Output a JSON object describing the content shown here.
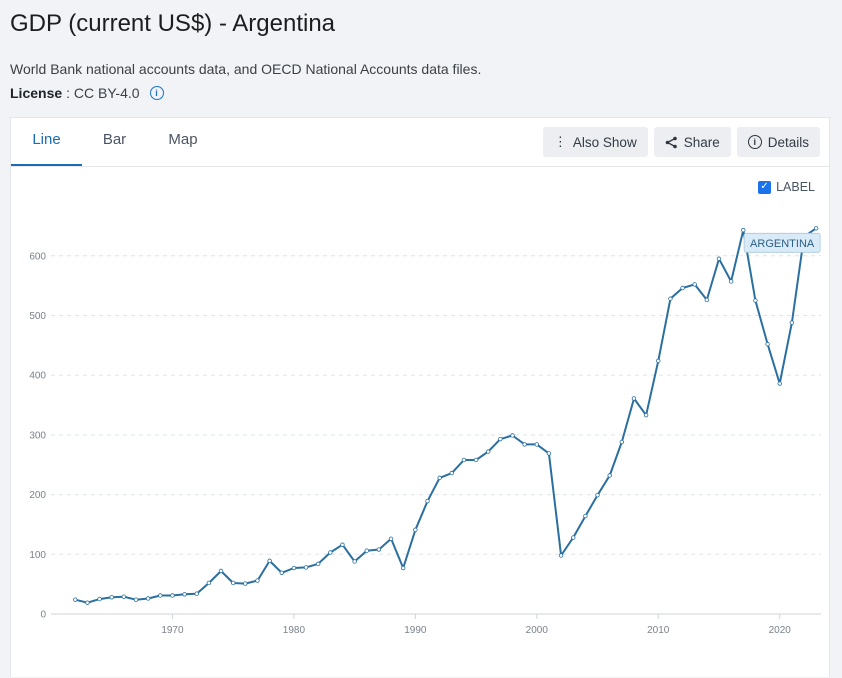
{
  "page": {
    "title": "GDP (current US$) - Argentina",
    "source": "World Bank national accounts data, and OECD National Accounts data files.",
    "license_label": "License",
    "license_value": ": CC BY-4.0"
  },
  "tabs": [
    {
      "label": "Line",
      "active": true
    },
    {
      "label": "Bar",
      "active": false
    },
    {
      "label": "Map",
      "active": false
    }
  ],
  "actions": {
    "also_show": "Also Show",
    "share": "Share",
    "details": "Details"
  },
  "label_toggle": {
    "label": "LABEL",
    "checked": true
  },
  "colors": {
    "line": "#2a6f9f",
    "accent": "#1b6db3",
    "label_bg": "#d9ebf7"
  },
  "chart_data": {
    "type": "line",
    "title": "",
    "xlabel": "",
    "ylabel": "",
    "xlim": [
      1960,
      2023
    ],
    "ylim": [
      0,
      650
    ],
    "x_ticks": [
      1970,
      1980,
      1990,
      2000,
      2010,
      2020
    ],
    "y_ticks": [
      0,
      100,
      200,
      300,
      400,
      500,
      600
    ],
    "grid": true,
    "series": [
      {
        "name": "ARGENTINA",
        "x": [
          1962,
          1963,
          1964,
          1965,
          1966,
          1967,
          1968,
          1969,
          1970,
          1971,
          1972,
          1973,
          1974,
          1975,
          1976,
          1977,
          1978,
          1979,
          1980,
          1981,
          1982,
          1983,
          1984,
          1985,
          1986,
          1987,
          1988,
          1989,
          1990,
          1991,
          1992,
          1993,
          1994,
          1995,
          1996,
          1997,
          1998,
          1999,
          2000,
          2001,
          2002,
          2003,
          2004,
          2005,
          2006,
          2007,
          2008,
          2009,
          2010,
          2011,
          2012,
          2013,
          2014,
          2015,
          2016,
          2017,
          2018,
          2019,
          2020,
          2021,
          2022,
          2023
        ],
        "values": [
          24,
          19,
          25,
          28,
          29,
          24,
          26,
          31,
          31,
          33,
          34,
          52,
          72,
          52,
          51,
          56,
          89,
          69,
          77,
          78,
          84,
          103,
          116,
          88,
          106,
          108,
          126,
          77,
          141,
          189,
          228,
          236,
          258,
          258,
          272,
          293,
          299,
          284,
          284,
          269,
          98,
          128,
          164,
          199,
          232,
          288,
          361,
          333,
          424,
          528,
          546,
          552,
          526,
          595,
          557,
          643,
          525,
          452,
          386,
          488,
          632,
          646
        ]
      }
    ]
  }
}
